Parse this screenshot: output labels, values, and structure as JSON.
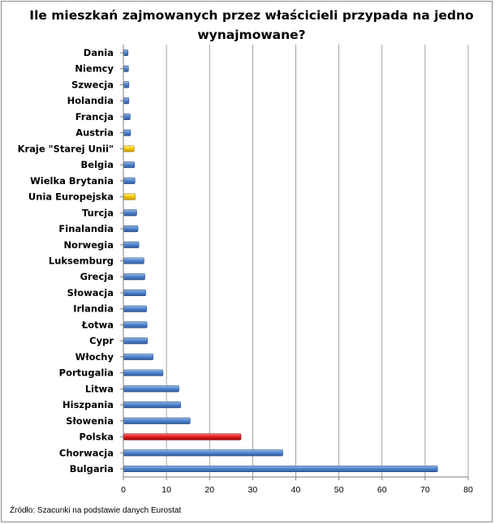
{
  "chart_data": {
    "type": "bar",
    "orientation": "horizontal",
    "title": "Ile mieszkań zajmowanych przez właścicieli przypada na jedno wynajmowane?",
    "source": "Źródło: Szacunki na podstawie danych Eurostat",
    "xlim": [
      0,
      80
    ],
    "x_ticks": [
      "0",
      "10",
      "20",
      "30",
      "40",
      "50",
      "60",
      "70",
      "80"
    ],
    "grid": "vertical",
    "categories": [
      "Dania",
      "Niemcy",
      "Szwecja",
      "Holandia",
      "Francja",
      "Austria",
      "Kraje \"Starej Unii\"",
      "Belgia",
      "Wielka Brytania",
      "Unia Europejska",
      "Turcja",
      "Finalandia",
      "Norwegia",
      "Luksemburg",
      "Grecja",
      "Słowacja",
      "Irlandia",
      "Łotwa",
      "Cypr",
      "Włochy",
      "Portugalia",
      "Litwa",
      "Hiszpania",
      "Słowenia",
      "Polska",
      "Chorwacja",
      "Bulgaria"
    ],
    "values": [
      1.0,
      1.1,
      1.2,
      1.2,
      1.5,
      1.6,
      2.4,
      2.5,
      2.6,
      2.7,
      3.0,
      3.3,
      3.5,
      4.7,
      4.9,
      5.1,
      5.3,
      5.4,
      5.5,
      6.8,
      9.1,
      12.8,
      13.2,
      15.4,
      27.2,
      36.9,
      72.8
    ],
    "colors": {
      "default": "#4f81bd",
      "Kraje \"Starej Unii\"": "#ffcc00",
      "Unia Europejska": "#ffcc00",
      "Polska": "#e81c1c"
    }
  }
}
